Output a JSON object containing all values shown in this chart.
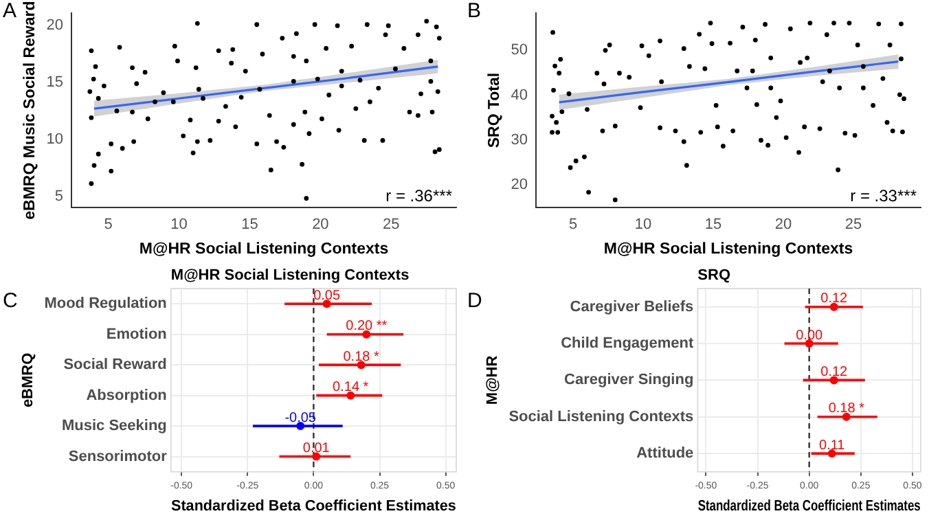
{
  "chart_data": [
    {
      "type": "scatter",
      "xlabel": "M@HR Social Listening Contexts",
      "ylabel": "eBMRQ Music Social Reward",
      "annotations": [
        "A",
        "r = .36***"
      ],
      "xlim": [
        2.4,
        29.6
      ],
      "ylim": [
        4,
        21.1
      ],
      "xticks": [
        5,
        10,
        15,
        20,
        25
      ],
      "yticks": [
        5,
        10,
        15,
        20
      ],
      "grid": false,
      "legend": false,
      "series": [
        {
          "type": "scatter",
          "marker": "circle",
          "color": "#000000",
          "x": [
            3.7,
            3.8,
            3.96,
            3.8,
            3.8,
            4.0,
            4.3,
            4.1,
            4.3,
            4.7,
            5.2,
            5.2,
            5.8,
            6.0,
            6.7,
            6.8,
            6.7,
            7.0,
            7.6,
            7.8,
            8.3,
            8.9,
            9.7,
            9.9,
            10.3,
            10.8,
            11.0,
            11.3,
            11.3,
            11.2,
            11.4,
            11.7,
            12.2,
            12.8,
            12.8,
            13.3,
            13.8,
            14.0,
            14.4,
            14.7,
            15.5,
            15.5,
            15.7,
            15.9,
            16.4,
            16.5,
            16.9,
            17.3,
            17.4,
            18.1,
            18.3,
            18.1,
            18.7,
            19.0,
            19.2,
            19.0,
            18.9,
            19.6,
            19.8,
            20.1,
            20.4,
            20.6,
            21.2,
            21.3,
            21.5,
            22.2,
            22.5,
            23.1,
            23.3,
            23.5,
            24.4,
            24.6,
            24.8,
            25.3,
            25.9,
            26.3,
            26.9,
            26.9,
            27.1,
            27.5,
            27.8,
            27.9,
            28.1,
            28.4,
            28.2,
            28.4,
            28.3,
            27.8,
            22.8,
            18.1,
            13.7,
            9.6,
            5.6,
            21.5,
            24.1
          ],
          "values": [
            14.2,
            17.8,
            15.3,
            11.9,
            6.1,
            7.7,
            8.7,
            16.4,
            13.6,
            14.7,
            9.6,
            7.2,
            18.1,
            9.2,
            16.3,
            9.8,
            12.4,
            14.9,
            15.9,
            11.8,
            13.3,
            14.1,
            18.2,
            16.9,
            10.3,
            11.7,
            8.8,
            20.2,
            9.8,
            16.3,
            14.4,
            13.6,
            9.9,
            17.8,
            11.6,
            12.9,
            17.9,
            11.1,
            13.7,
            16.0,
            20.1,
            9.6,
            14.4,
            17.5,
            12.1,
            7.3,
            9.8,
            18.9,
            9.3,
            17.3,
            19.3,
            11.3,
            7.8,
            4.8,
            10.5,
            16.9,
            12.4,
            20.1,
            15.3,
            11.8,
            18.0,
            13.9,
            20.0,
            10.8,
            16.0,
            18.2,
            12.7,
            9.9,
            20.1,
            13.3,
            9.9,
            19.2,
            20.0,
            16.2,
            18.0,
            12.4,
            12.1,
            19.2,
            14.0,
            20.4,
            16.9,
            12.4,
            8.9,
            9.1,
            19.9,
            18.9,
            14.2,
            15.1,
            15.2,
            15.1,
            16.7,
            13.3,
            12.5,
            14.7,
            14.5
          ]
        },
        {
          "type": "line",
          "marker": "none",
          "color": "#3366ff",
          "x": [
            4,
            10,
            16,
            22,
            28.3
          ],
          "values": [
            12.7,
            13.6,
            14.5,
            15.4,
            16.4
          ],
          "lower": [
            12.0,
            13.15,
            14.25,
            15.0,
            15.8
          ],
          "upper": [
            13.4,
            14.05,
            14.8,
            15.85,
            17.0
          ]
        }
      ]
    },
    {
      "type": "scatter",
      "xlabel": "M@HR Social Listening Contexts",
      "ylabel": "SRQ Total",
      "annotations": [
        "B",
        "r = .33***"
      ],
      "xlim": [
        2.35,
        29.8
      ],
      "ylim": [
        14.9,
        58.3
      ],
      "xticks": [
        5,
        10,
        15,
        20,
        25
      ],
      "yticks": [
        20,
        30,
        40,
        50
      ],
      "grid": false,
      "legend": false,
      "series": [
        {
          "type": "scatter",
          "marker": "circle",
          "color": "#000000",
          "x": [
            3.55,
            3.6,
            3.5,
            3.5,
            3.9,
            3.8,
            3.7,
            4.1,
            4.0,
            4.2,
            4.8,
            5.2,
            4.7,
            5.8,
            6.1,
            6.0,
            6.7,
            7.1,
            7.3,
            7.6,
            7.2,
            8.0,
            8.0,
            8.3,
            9.0,
            9.8,
            9.9,
            10.4,
            11.2,
            11.2,
            11.3,
            12.3,
            12.9,
            12.9,
            13.1,
            13.3,
            14.0,
            14.1,
            14.4,
            14.8,
            14.9,
            15.2,
            15.3,
            15.7,
            16.2,
            16.4,
            16.7,
            17.1,
            17.4,
            18.0,
            18.1,
            18.4,
            18.9,
            18.7,
            19.1,
            19.5,
            19.8,
            20.2,
            20.5,
            21.1,
            21.5,
            21.7,
            21.9,
            22.6,
            22.8,
            23.1,
            23.6,
            23.9,
            24.0,
            24.4,
            24.7,
            25.1,
            25.3,
            25.7,
            26.4,
            26.8,
            27.1,
            27.4,
            27.6,
            27.8,
            28.5,
            28.4,
            28.6,
            28.3,
            28.4,
            21.2,
            19.1,
            17.8,
            23.3,
            25.7
          ],
          "values": [
            54.0,
            41.1,
            35.3,
            31.7,
            31.7,
            33.9,
            46.5,
            48.0,
            44.9,
            36.3,
            23.8,
            25.3,
            40.3,
            26.2,
            18.3,
            36.8,
            44.9,
            32.0,
            50.0,
            51.2,
            42.5,
            16.6,
            33.1,
            44.9,
            44.0,
            37.2,
            51.0,
            48.8,
            52.1,
            32.7,
            43.0,
            32.0,
            29.6,
            50.4,
            24.3,
            46.4,
            53.6,
            31.7,
            45.9,
            56.1,
            51.5,
            37.7,
            32.9,
            28.6,
            51.6,
            32.0,
            45.4,
            55.2,
            41.6,
            52.3,
            37.9,
            29.9,
            28.8,
            55.8,
            48.3,
            35.0,
            38.7,
            30.5,
            54.8,
            27.2,
            32.9,
            48.3,
            56.1,
            32.5,
            43.0,
            53.5,
            56.1,
            23.3,
            41.6,
            31.5,
            56.1,
            31.0,
            51.2,
            41.6,
            37.7,
            55.9,
            43.7,
            33.9,
            51.2,
            32.0,
            31.8,
            55.9,
            39.2,
            40.1,
            48.1,
            47.3,
            41.6,
            45.4,
            45.4,
            46.4
          ]
        },
        {
          "type": "line",
          "marker": "none",
          "color": "#3366ff",
          "x": [
            4,
            10,
            16,
            22,
            28.2
          ],
          "values": [
            38.4,
            40.7,
            42.9,
            45.2,
            47.5
          ],
          "lower": [
            36.7,
            39.4,
            42.2,
            44.2,
            45.9
          ],
          "upper": [
            40.1,
            41.9,
            43.6,
            46.2,
            49.1
          ]
        }
      ]
    },
    {
      "type": "scatter",
      "orientation": "horizontal",
      "title": "M@HR Social Listening Contexts",
      "xlabel": "Standardized Beta Coefficient Estimates",
      "ylabel": "eBMRQ",
      "annotations": [
        "C"
      ],
      "grid": true,
      "legend": false,
      "marker": "circle",
      "categories": [
        "Mood Regulation",
        "Emotion",
        "Social Reward",
        "Absorption",
        "Music Seeking",
        "Sensorimotor"
      ],
      "values": [
        0.05,
        0.2,
        0.18,
        0.14,
        -0.05,
        0.01
      ],
      "errors": [
        [
          -0.11,
          0.22
        ],
        [
          0.05,
          0.34
        ],
        [
          0.02,
          0.33
        ],
        [
          0.01,
          0.26
        ],
        [
          -0.23,
          0.11
        ],
        [
          -0.13,
          0.14
        ]
      ],
      "value_labels": [
        "0.05",
        "0.20 **",
        "0.18 *",
        "0.14 *",
        "-0.05",
        "0.01"
      ],
      "colors": [
        "#ff0000",
        "#ff0000",
        "#ff0000",
        "#ff0000",
        "#0000ff",
        "#ff0000"
      ],
      "xlim": [
        -0.54,
        0.54
      ],
      "xticks": [
        {
          "value": -0.5,
          "label": "-0.50"
        },
        {
          "value": -0.25,
          "label": "-0.25"
        },
        {
          "value": 0,
          "label": "0.00"
        },
        {
          "value": 0.25,
          "label": "0.25"
        },
        {
          "value": 0.5,
          "label": "0.50"
        }
      ],
      "ref_lines": [
        {
          "axis": "x",
          "value": 0,
          "label": null,
          "color": "#333333",
          "line_style": "dashed"
        }
      ]
    },
    {
      "type": "scatter",
      "orientation": "horizontal",
      "title": "SRQ",
      "xlabel": "Standardized Beta Coefficient Estimates",
      "ylabel": "M@HR",
      "annotations": [
        "D"
      ],
      "grid": true,
      "legend": false,
      "marker": "circle",
      "categories": [
        "Caregiver Beliefs",
        "Child Engagement",
        "Caregiver Singing",
        "Social Listening Contexts",
        "Attitude"
      ],
      "values": [
        0.12,
        0.0,
        0.12,
        0.18,
        0.11
      ],
      "errors": [
        [
          -0.02,
          0.26
        ],
        [
          -0.12,
          0.14
        ],
        [
          -0.03,
          0.27
        ],
        [
          0.04,
          0.33
        ],
        [
          0.01,
          0.22
        ]
      ],
      "value_labels": [
        "0.12",
        "0.00",
        "0.12",
        "0.18 *",
        "0.11"
      ],
      "colors": [
        "#ff0000",
        "#ff0000",
        "#ff0000",
        "#ff0000",
        "#ff0000"
      ],
      "xlim": [
        -0.54,
        0.54
      ],
      "xticks": [
        {
          "value": -0.5,
          "label": "-0.50"
        },
        {
          "value": -0.25,
          "label": "-0.25"
        },
        {
          "value": 0,
          "label": "0.00"
        },
        {
          "value": 0.25,
          "label": "0.25"
        },
        {
          "value": 0.5,
          "label": "0.50"
        }
      ],
      "ref_lines": [
        {
          "axis": "x",
          "value": 0,
          "label": null,
          "color": "#333333",
          "line_style": "dashed"
        }
      ]
    }
  ]
}
